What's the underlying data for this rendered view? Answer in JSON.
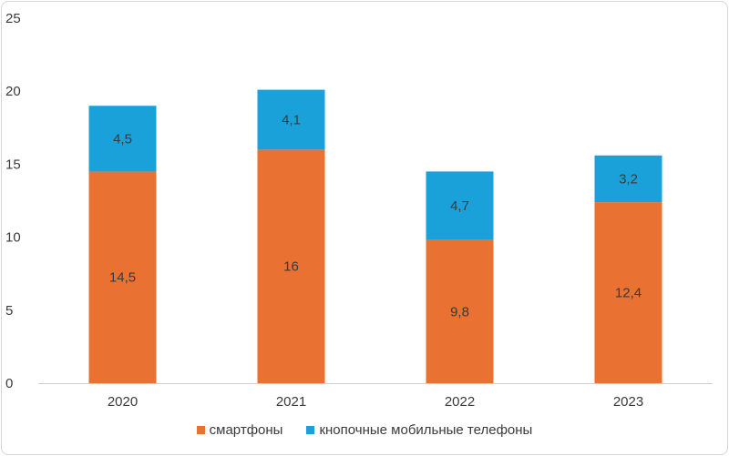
{
  "chart_data": {
    "type": "bar",
    "stacked": true,
    "categories": [
      "2020",
      "2021",
      "2022",
      "2023"
    ],
    "series": [
      {
        "name": "смартфоны",
        "values": [
          14.5,
          16,
          9.8,
          12.4
        ],
        "labels": [
          "14,5",
          "16",
          "9,8",
          "12,4"
        ],
        "color": "#E97132"
      },
      {
        "name": "кнопочные мобильные телефоны",
        "values": [
          4.5,
          4.1,
          4.7,
          3.2
        ],
        "labels": [
          "4,5",
          "4,1",
          "4,7",
          "3,2"
        ],
        "color": "#1BA1D9"
      }
    ],
    "ylim": [
      0,
      25
    ],
    "yticks": [
      "0",
      "5",
      "10",
      "15",
      "20",
      "25"
    ],
    "grid": false,
    "legend_position": "bottom"
  }
}
